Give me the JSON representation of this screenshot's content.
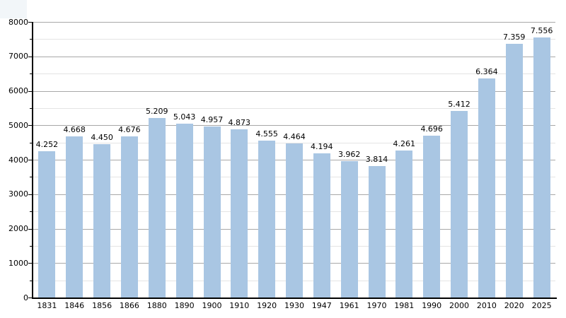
{
  "chart_data": {
    "type": "bar",
    "categories": [
      "1831",
      "1846",
      "1856",
      "1866",
      "1880",
      "1890",
      "1900",
      "1910",
      "1920",
      "1930",
      "1947",
      "1961",
      "1970",
      "1981",
      "1990",
      "2000",
      "2010",
      "2020",
      "2025"
    ],
    "values": [
      4252,
      4668,
      4450,
      4676,
      5209,
      5043,
      4957,
      4873,
      4555,
      4464,
      4194,
      3962,
      3814,
      4261,
      4696,
      5412,
      6364,
      7359,
      7556
    ],
    "value_labels": [
      "4.252",
      "4.668",
      "4.450",
      "4.676",
      "5.209",
      "5.043",
      "4.957",
      "4.873",
      "4.555",
      "4.464",
      "4.194",
      "3.962",
      "3.814",
      "4.261",
      "4.696",
      "5.412",
      "6.364",
      "7.359",
      "7.556"
    ],
    "y_tick_labels": [
      "0",
      "1000",
      "2000",
      "3000",
      "4000",
      "5000",
      "6000",
      "7000",
      "8000"
    ],
    "ylim": [
      0,
      8000
    ],
    "y_major_step": 1000,
    "y_minor_step": 500,
    "grid": true,
    "legend": false
  },
  "colors": {
    "bar_fill": "#a9c6e3",
    "major_grid": "#a8a8a8",
    "minor_grid": "#e4e4e4",
    "axis": "#000000",
    "text": "#000000",
    "corner_swatch": "#f2f6f9",
    "background": "#ffffff"
  }
}
